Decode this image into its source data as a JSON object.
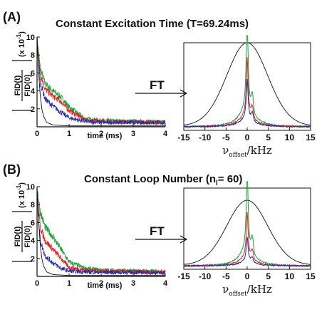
{
  "panels": [
    {
      "label": "(A)",
      "title": "Constant Excitation Time (T=69.24ms)",
      "ft_label": "FT",
      "ylabel_top": "FID(t)",
      "ylabel_bottom": "FID(0)",
      "ylabel_scale": "(x 10",
      "ylabel_exp": "-1",
      "ylabel_close": ")"
    },
    {
      "label": "(B)",
      "title_main": "Constant Loop Number (n",
      "title_sub": "l",
      "title_end": "= 60)",
      "ft_label": "FT",
      "ylabel_top": "FID(t)",
      "ylabel_bottom": "FID(0)",
      "ylabel_scale": "(x 10",
      "ylabel_exp": "-1",
      "ylabel_close": ")"
    }
  ],
  "colors": {
    "green": "#1a9e3a",
    "red": "#e0201e",
    "blue": "#2b2b9e",
    "black": "#111111"
  },
  "chart_data": [
    {
      "type": "line",
      "panel": "A-time",
      "xlabel": "time (ms)",
      "xlim": [
        0,
        4
      ],
      "ylim": [
        0,
        10
      ],
      "xticks": [
        "0",
        "1",
        "2",
        "3",
        "4"
      ],
      "yticks": [
        "2",
        "4",
        "6",
        "8",
        "10"
      ],
      "series": [
        {
          "color": "green",
          "x": [
            0,
            0.1,
            0.25,
            0.5,
            0.75,
            1.0,
            1.5,
            2,
            3,
            4
          ],
          "values": [
            9.8,
            6.5,
            4.8,
            4.0,
            3.3,
            2.2,
            0.9,
            0.7,
            0.6,
            0.55
          ]
        },
        {
          "color": "red",
          "x": [
            0,
            0.1,
            0.25,
            0.5,
            0.75,
            1.0,
            1.5,
            2,
            3,
            4
          ],
          "values": [
            9.6,
            6.0,
            4.2,
            3.4,
            2.8,
            1.8,
            0.8,
            0.6,
            0.55,
            0.5
          ]
        },
        {
          "color": "blue",
          "x": [
            0,
            0.1,
            0.25,
            0.5,
            0.75,
            1.0,
            1.5,
            2,
            3,
            4
          ],
          "values": [
            9.3,
            5.0,
            3.1,
            2.3,
            1.6,
            1.0,
            0.6,
            0.5,
            0.5,
            0.45
          ]
        },
        {
          "color": "black",
          "x": [
            0,
            0.05,
            0.1,
            0.15,
            0.2,
            0.3,
            0.5,
            1,
            4
          ],
          "values": [
            10,
            6,
            3.5,
            2,
            1.2,
            0.5,
            0.2,
            0.1,
            0.1
          ]
        }
      ]
    },
    {
      "type": "line",
      "panel": "A-freq",
      "xlabel_main": "ν",
      "xlabel_sub": "offset",
      "xlabel_end": "/kHz",
      "xlim": [
        -15,
        15
      ],
      "xticks": [
        "-15",
        "-10",
        "-5",
        "0",
        "5",
        "10",
        "15"
      ],
      "series": [
        {
          "color": "black",
          "shape": "broad",
          "center": 0,
          "width": 5.5,
          "peak": 1.0,
          "baseline": 0.05
        },
        {
          "color": "green",
          "shape": "narrow",
          "peak": 1.05
        },
        {
          "color": "red",
          "shape": "narrow",
          "peak": 0.65
        },
        {
          "color": "blue",
          "shape": "narrow",
          "peak": 0.45
        }
      ]
    },
    {
      "type": "line",
      "panel": "B-time",
      "xlabel": "time (ms)",
      "xlim": [
        0,
        4
      ],
      "ylim": [
        0,
        10
      ],
      "xticks": [
        "0",
        "1",
        "2",
        "3",
        "4"
      ],
      "yticks": [
        "2",
        "4",
        "6",
        "8",
        "10"
      ],
      "series": [
        {
          "color": "green",
          "x": [
            0,
            0.1,
            0.25,
            0.5,
            0.75,
            1.0,
            1.5,
            2,
            3,
            4
          ],
          "values": [
            9.9,
            7.2,
            5.5,
            4.4,
            3.0,
            1.6,
            0.9,
            0.7,
            0.6,
            0.55
          ]
        },
        {
          "color": "red",
          "x": [
            0,
            0.1,
            0.25,
            0.5,
            0.75,
            1.0,
            1.5,
            2,
            3,
            4
          ],
          "values": [
            9.2,
            5.5,
            4.0,
            3.0,
            2.0,
            1.0,
            0.7,
            0.6,
            0.5,
            0.5
          ]
        },
        {
          "color": "blue",
          "x": [
            0,
            0.1,
            0.25,
            0.5,
            0.75,
            1.0,
            1.5,
            2,
            3,
            4
          ],
          "values": [
            8.8,
            4.0,
            2.3,
            1.5,
            0.9,
            0.6,
            0.5,
            0.45,
            0.45,
            0.4
          ]
        },
        {
          "color": "black",
          "x": [
            0,
            0.05,
            0.1,
            0.15,
            0.2,
            0.3,
            0.5,
            1,
            4
          ],
          "values": [
            10,
            6,
            3.5,
            2,
            1.2,
            0.5,
            0.2,
            0.1,
            0.1
          ]
        }
      ]
    },
    {
      "type": "line",
      "panel": "B-freq",
      "xlabel_main": "ν",
      "xlabel_sub": "offset",
      "xlabel_end": "/kHz",
      "xlim": [
        -15,
        15
      ],
      "xticks": [
        "-15",
        "-10",
        "-5",
        "0",
        "5",
        "10",
        "15"
      ],
      "series": [
        {
          "color": "black",
          "shape": "broad",
          "center": 0,
          "width": 5.5,
          "peak": 0.85,
          "baseline": 0.05
        },
        {
          "color": "green",
          "shape": "narrow",
          "peak": 1.0
        },
        {
          "color": "red",
          "shape": "narrow",
          "peak": 0.55
        },
        {
          "color": "blue",
          "shape": "narrow",
          "peak": 0.3
        }
      ]
    }
  ]
}
